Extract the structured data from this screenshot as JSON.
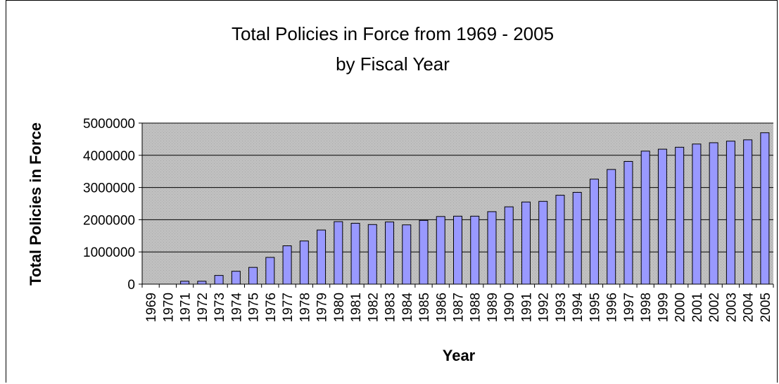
{
  "chart_data": {
    "type": "bar",
    "title": "Total Policies in Force from 1969 - 2005",
    "subtitle": "by Fiscal Year",
    "xlabel": "Year",
    "ylabel": "Total Policies in Force",
    "ylim": [
      0,
      5000000
    ],
    "yticks": [
      "0",
      "1000000",
      "2000000",
      "3000000",
      "4000000",
      "5000000"
    ],
    "grid": true,
    "legend": "none",
    "categories": [
      "1969",
      "1970",
      "1971",
      "1972",
      "1973",
      "1974",
      "1975",
      "1976",
      "1977",
      "1978",
      "1979",
      "1980",
      "1981",
      "1982",
      "1983",
      "1984",
      "1985",
      "1986",
      "1987",
      "1988",
      "1989",
      "1990",
      "1991",
      "1992",
      "1993",
      "1994",
      "1995",
      "1996",
      "1997",
      "1998",
      "1999",
      "2000",
      "2001",
      "2002",
      "2003",
      "2004",
      "2005"
    ],
    "values": [
      0,
      0,
      90000,
      90000,
      270000,
      400000,
      520000,
      830000,
      1190000,
      1340000,
      1680000,
      1940000,
      1890000,
      1850000,
      1930000,
      1840000,
      1980000,
      2100000,
      2110000,
      2110000,
      2250000,
      2400000,
      2550000,
      2570000,
      2760000,
      2850000,
      3260000,
      3560000,
      3810000,
      4130000,
      4190000,
      4250000,
      4350000,
      4390000,
      4440000,
      4480000,
      4700000
    ],
    "colors": {
      "bar": "#9999ff",
      "plot_background": "#c0c0c0",
      "gridline": "#000000"
    }
  }
}
